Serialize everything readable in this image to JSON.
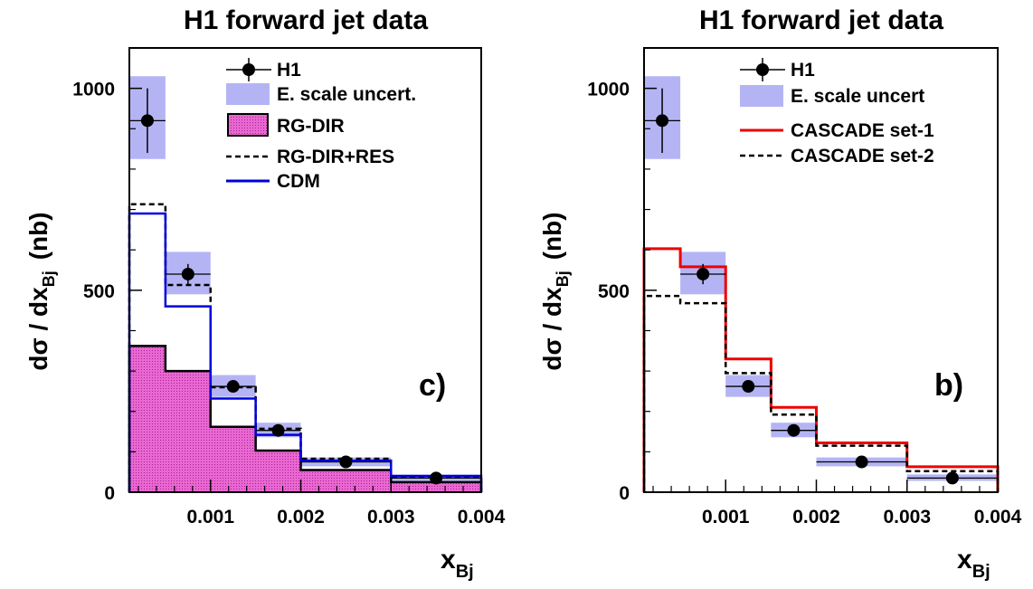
{
  "colors": {
    "band": "#b4b4f5",
    "rgdir_fill": "#e868d0",
    "cdm": "#0000dd",
    "cascade1": "#ee0000",
    "black": "#000000"
  },
  "chart_data": [
    {
      "type": "step-histogram",
      "panel_label": "c)",
      "title": "H1 forward jet data",
      "ylabel_main": "dσ / dx",
      "ylabel_sub": "Bj",
      "ylabel_unit": "(nb)",
      "xlabel_main": "x",
      "xlabel_sub": "Bj",
      "xlim": [
        0.0001,
        0.004
      ],
      "ylim": [
        0,
        1100
      ],
      "xticks": [
        0.001,
        0.002,
        0.003,
        0.004
      ],
      "xtick_labels": [
        "0.001",
        "0.002",
        "0.003",
        "0.004"
      ],
      "yticks": [
        0,
        500,
        1000
      ],
      "ytick_labels": [
        "0",
        "500",
        "1000"
      ],
      "bin_edges": [
        0.0001,
        0.0005,
        0.001,
        0.0015,
        0.002,
        0.003,
        0.004
      ],
      "data": {
        "name": "H1",
        "x": [
          0.0003,
          0.00075,
          0.00125,
          0.00175,
          0.0025,
          0.0035
        ],
        "y": [
          920,
          540,
          262,
          153,
          75,
          35
        ],
        "yerr": [
          80,
          25,
          12,
          8,
          4,
          3
        ]
      },
      "band": {
        "name": "E. scale uncert.",
        "low": [
          825,
          490,
          236,
          136,
          64,
          28
        ],
        "high": [
          1030,
          595,
          290,
          172,
          86,
          44
        ]
      },
      "series": [
        {
          "name": "RG-DIR",
          "style": "filled",
          "values": [
            362,
            300,
            162,
            103,
            55,
            25
          ]
        },
        {
          "name": "RG-DIR+RES",
          "style": "dashed-black",
          "values": [
            713,
            513,
            260,
            157,
            83,
            37
          ]
        },
        {
          "name": "CDM",
          "style": "solid-blue",
          "values": [
            690,
            460,
            232,
            142,
            78,
            40
          ]
        }
      ]
    },
    {
      "type": "step-histogram",
      "panel_label": "b)",
      "title": "H1 forward jet data",
      "ylabel_main": "dσ / dx",
      "ylabel_sub": "Bj",
      "ylabel_unit": "(nb)",
      "xlabel_main": "x",
      "xlabel_sub": "Bj",
      "xlim": [
        0.0001,
        0.004
      ],
      "ylim": [
        0,
        1100
      ],
      "xticks": [
        0.001,
        0.002,
        0.003,
        0.004
      ],
      "xtick_labels": [
        "0.001",
        "0.002",
        "0.003",
        "0.004"
      ],
      "yticks": [
        0,
        500,
        1000
      ],
      "ytick_labels": [
        "0",
        "500",
        "1000"
      ],
      "bin_edges": [
        0.0001,
        0.0005,
        0.001,
        0.0015,
        0.002,
        0.003,
        0.004
      ],
      "data": {
        "name": "H1",
        "x": [
          0.0003,
          0.00075,
          0.00125,
          0.00175,
          0.0025,
          0.0035
        ],
        "y": [
          920,
          540,
          262,
          153,
          75,
          35
        ],
        "yerr": [
          80,
          25,
          12,
          8,
          4,
          3
        ]
      },
      "band": {
        "name": "E. scale uncert",
        "low": [
          825,
          490,
          236,
          136,
          64,
          28
        ],
        "high": [
          1030,
          595,
          290,
          172,
          86,
          44
        ]
      },
      "series": [
        {
          "name": "CASCADE set-1",
          "style": "solid-red",
          "values": [
            603,
            558,
            330,
            210,
            122,
            63
          ]
        },
        {
          "name": "CASCADE set-2",
          "style": "dashed-black",
          "values": [
            486,
            468,
            295,
            192,
            115,
            52
          ]
        }
      ]
    }
  ]
}
